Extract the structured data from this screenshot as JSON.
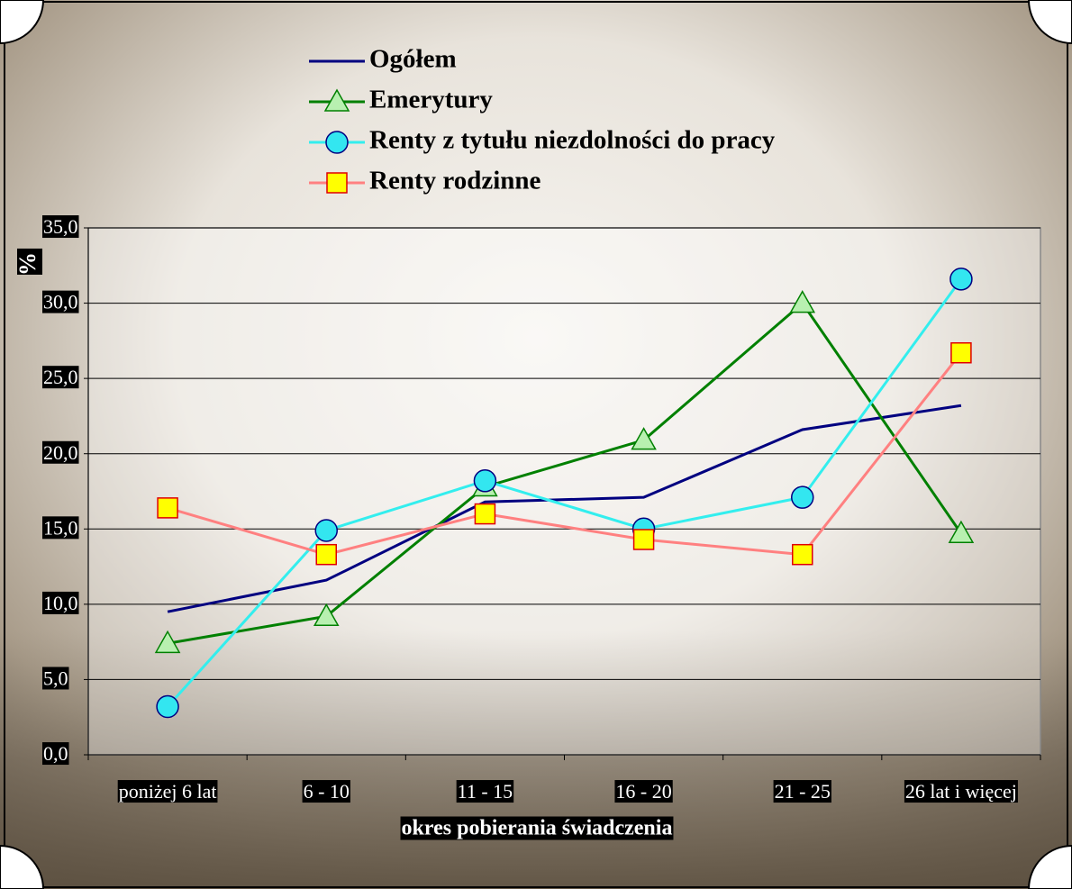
{
  "chart_data": {
    "type": "line",
    "categories": [
      "poniżej 6 lat",
      "6 - 10",
      "11 - 15",
      "16 - 20",
      "21 - 25",
      "26 lat i więcej"
    ],
    "x_label": "okres pobierania świadczenia",
    "y_label": "%",
    "ylim": [
      0,
      35
    ],
    "yticks": [
      {
        "value": 0,
        "label": "0,0"
      },
      {
        "value": 5,
        "label": "5,0"
      },
      {
        "value": 10,
        "label": "10,0"
      },
      {
        "value": 15,
        "label": "15,0"
      },
      {
        "value": 20,
        "label": "20,0"
      },
      {
        "value": 25,
        "label": "25,0"
      },
      {
        "value": 30,
        "label": "30,0"
      },
      {
        "value": 35,
        "label": "35,0"
      }
    ],
    "grid": true,
    "series": [
      {
        "name": "Ogółem",
        "color": "#000080",
        "marker": "none",
        "values": [
          9.5,
          11.6,
          16.8,
          17.1,
          21.6,
          23.2
        ]
      },
      {
        "name": "Emerytury",
        "color": "#008000",
        "marker": "triangle",
        "marker_fill": "#b8f0b0",
        "marker_stroke": "#008000",
        "values": [
          7.4,
          9.2,
          17.8,
          20.9,
          30.0,
          14.7
        ]
      },
      {
        "name": "Renty z tytułu niezdolności do pracy",
        "color": "#33eeee",
        "marker": "circle",
        "marker_fill": "#33e6f0",
        "marker_stroke": "#000080",
        "values": [
          3.2,
          14.9,
          18.2,
          15.0,
          17.1,
          31.6
        ]
      },
      {
        "name": "Renty rodzinne",
        "color": "#ff8080",
        "marker": "square",
        "marker_fill": "#ffff00",
        "marker_stroke": "#e00000",
        "values": [
          16.4,
          13.3,
          16.0,
          14.3,
          13.3,
          26.7
        ]
      }
    ]
  }
}
